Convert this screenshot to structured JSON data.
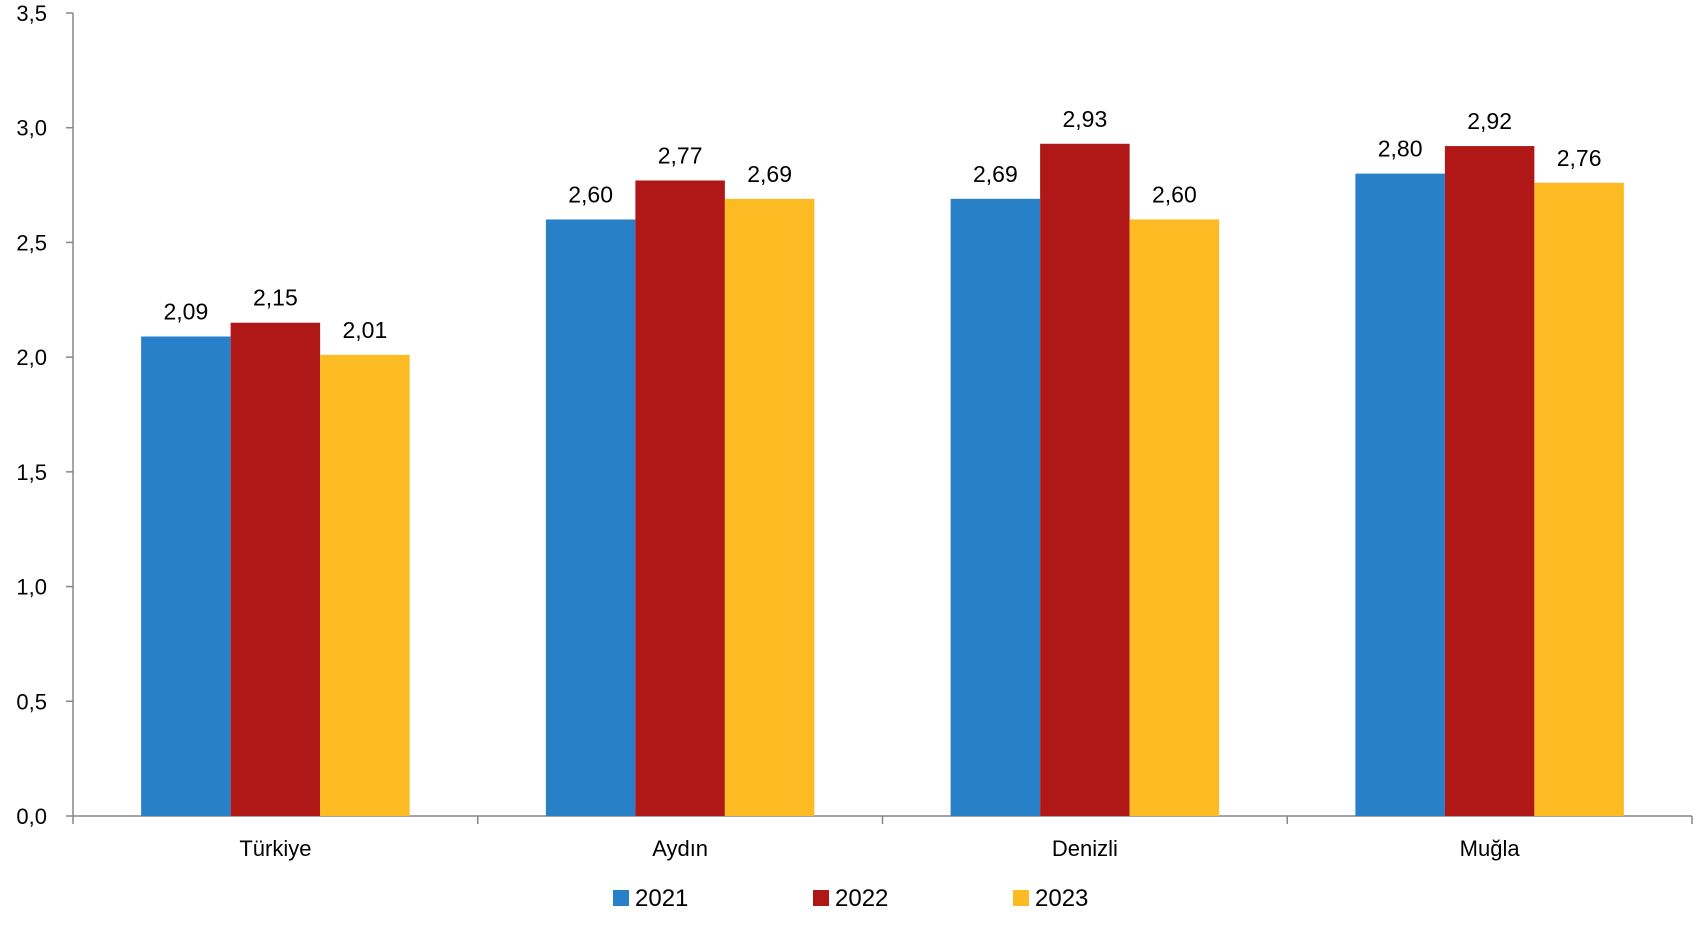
{
  "chart_data": {
    "type": "bar",
    "title": "",
    "xlabel": "",
    "ylabel": "",
    "categories": [
      "Türkiye",
      "Aydın",
      "Denizli",
      "Muğla"
    ],
    "series": [
      {
        "name": "2021",
        "color": "#2880C8",
        "values": [
          2.09,
          2.6,
          2.69,
          2.8
        ],
        "labels": [
          "2,09",
          "2,60",
          "2,69",
          "2,80"
        ]
      },
      {
        "name": "2022",
        "color": "#B01818",
        "values": [
          2.15,
          2.77,
          2.93,
          2.92
        ],
        "labels": [
          "2,15",
          "2,77",
          "2,93",
          "2,92"
        ]
      },
      {
        "name": "2023",
        "color": "#FCBB22",
        "values": [
          2.01,
          2.69,
          2.6,
          2.76
        ],
        "labels": [
          "2,01",
          "2,69",
          "2,60",
          "2,76"
        ]
      }
    ],
    "ylim": [
      0,
      3.5
    ],
    "yticks": [
      0,
      0.5,
      1.0,
      1.5,
      2.0,
      2.5,
      3.0,
      3.5
    ],
    "ytick_labels": [
      "0,0",
      "0,5",
      "1,0",
      "1,5",
      "2,0",
      "2,5",
      "3,0",
      "3,5"
    ],
    "grid": false,
    "legend_position": "bottom"
  }
}
